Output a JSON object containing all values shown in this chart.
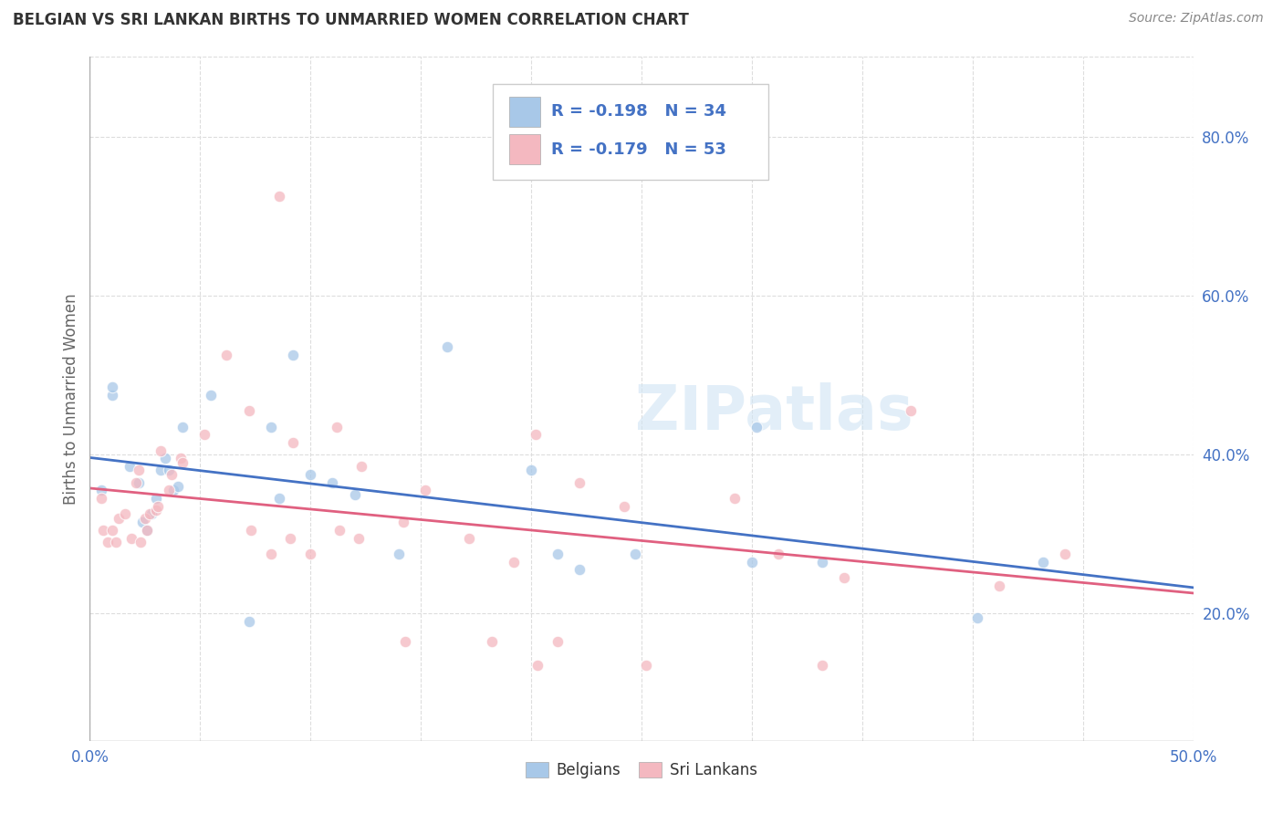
{
  "title": "BELGIAN VS SRI LANKAN BIRTHS TO UNMARRIED WOMEN CORRELATION CHART",
  "source": "Source: ZipAtlas.com",
  "ylabel": "Births to Unmarried Women",
  "xlim": [
    0.0,
    0.5
  ],
  "ylim": [
    0.04,
    0.9
  ],
  "yticks_right": [
    0.2,
    0.4,
    0.6,
    0.8
  ],
  "ytick_right_labels": [
    "20.0%",
    "40.0%",
    "60.0%",
    "80.0%"
  ],
  "belgian_color": "#a8c8e8",
  "srilanka_color": "#f4b8c0",
  "belgian_line_color": "#4472c4",
  "srilanka_line_color": "#e06080",
  "legend_text_color": "#4472c4",
  "watermark": "ZIPatlas",
  "legend_R_belgian": "R = -0.198",
  "legend_N_belgian": "N = 34",
  "legend_R_srilanka": "R = -0.179",
  "legend_N_srilanka": "N = 53",
  "belgian_x": [
    0.005,
    0.01,
    0.01,
    0.018,
    0.022,
    0.024,
    0.026,
    0.028,
    0.03,
    0.032,
    0.034,
    0.036,
    0.038,
    0.04,
    0.042,
    0.055,
    0.072,
    0.082,
    0.086,
    0.092,
    0.1,
    0.11,
    0.12,
    0.14,
    0.162,
    0.2,
    0.212,
    0.222,
    0.247,
    0.3,
    0.302,
    0.332,
    0.402,
    0.432
  ],
  "belgian_y": [
    0.355,
    0.475,
    0.485,
    0.385,
    0.365,
    0.315,
    0.305,
    0.325,
    0.345,
    0.38,
    0.395,
    0.38,
    0.355,
    0.36,
    0.435,
    0.475,
    0.19,
    0.435,
    0.345,
    0.525,
    0.375,
    0.365,
    0.35,
    0.275,
    0.535,
    0.38,
    0.275,
    0.255,
    0.275,
    0.265,
    0.435,
    0.265,
    0.195,
    0.265
  ],
  "srilanka_x": [
    0.005,
    0.006,
    0.008,
    0.01,
    0.012,
    0.013,
    0.016,
    0.019,
    0.021,
    0.022,
    0.023,
    0.025,
    0.026,
    0.027,
    0.03,
    0.031,
    0.032,
    0.036,
    0.037,
    0.041,
    0.042,
    0.052,
    0.062,
    0.072,
    0.073,
    0.082,
    0.086,
    0.091,
    0.092,
    0.1,
    0.112,
    0.113,
    0.122,
    0.123,
    0.142,
    0.143,
    0.152,
    0.172,
    0.182,
    0.192,
    0.202,
    0.203,
    0.212,
    0.222,
    0.242,
    0.252,
    0.292,
    0.312,
    0.332,
    0.342,
    0.372,
    0.412,
    0.442
  ],
  "srilanka_y": [
    0.345,
    0.305,
    0.29,
    0.305,
    0.29,
    0.32,
    0.325,
    0.295,
    0.365,
    0.38,
    0.29,
    0.32,
    0.305,
    0.325,
    0.33,
    0.335,
    0.405,
    0.355,
    0.375,
    0.395,
    0.39,
    0.425,
    0.525,
    0.455,
    0.305,
    0.275,
    0.725,
    0.295,
    0.415,
    0.275,
    0.435,
    0.305,
    0.295,
    0.385,
    0.315,
    0.165,
    0.355,
    0.295,
    0.165,
    0.265,
    0.425,
    0.135,
    0.165,
    0.365,
    0.335,
    0.135,
    0.345,
    0.275,
    0.135,
    0.245,
    0.455,
    0.235,
    0.275
  ],
  "background_color": "#ffffff",
  "grid_color": "#dddddd",
  "title_color": "#333333",
  "axis_label_color": "#666666",
  "tick_color": "#4472c4",
  "marker_size": 9,
  "marker_alpha": 0.75
}
